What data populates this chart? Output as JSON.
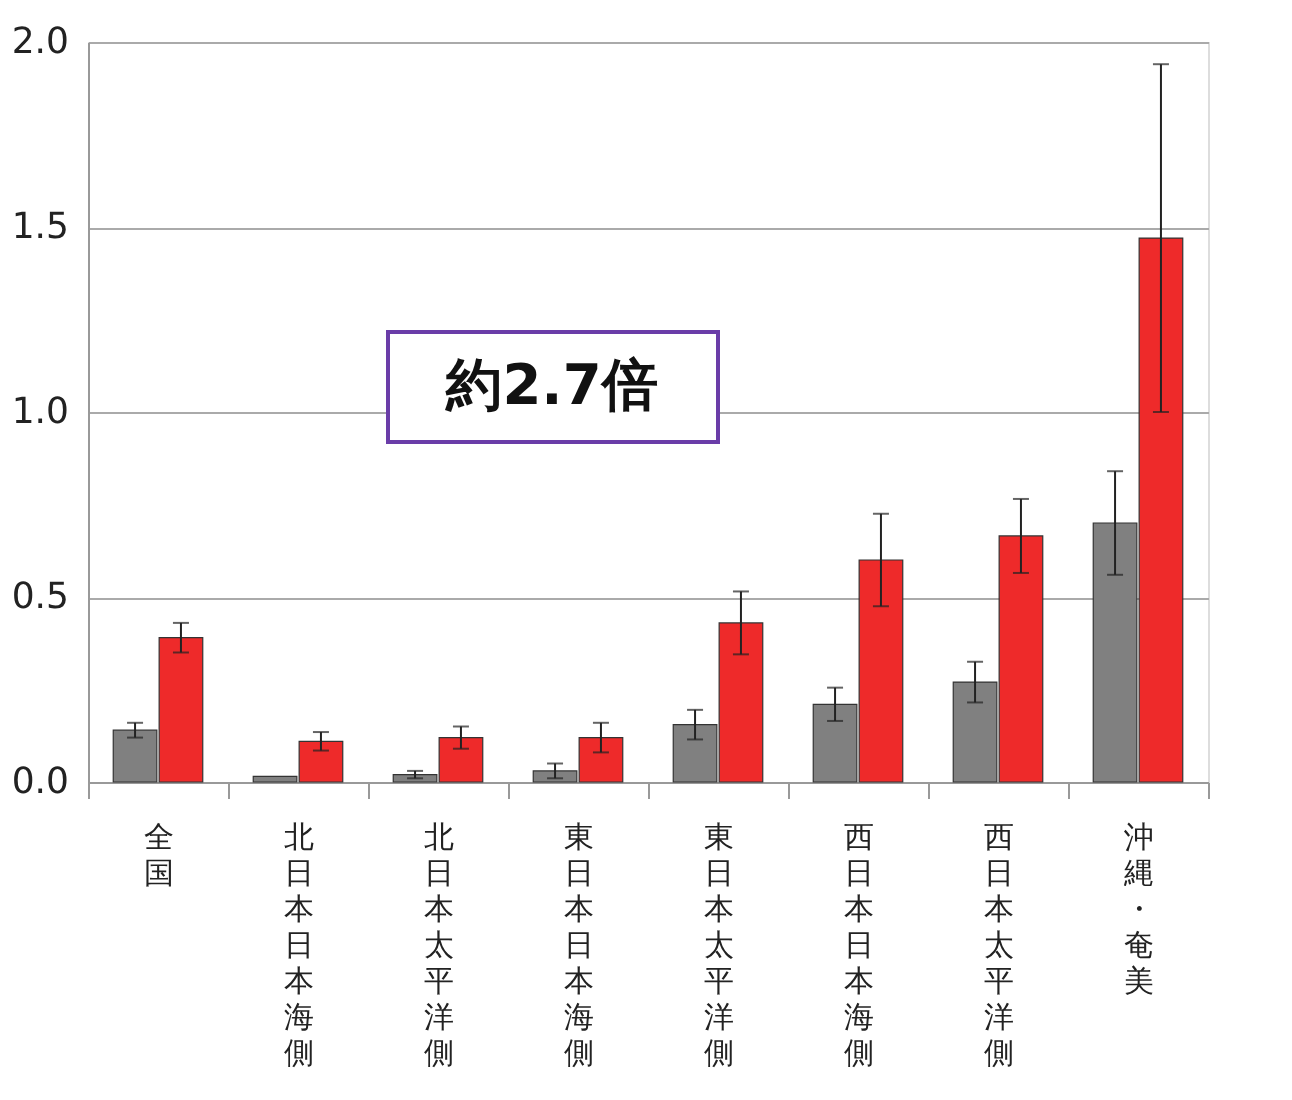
{
  "chart_data": {
    "type": "bar",
    "categories": [
      "全国",
      "北日本日本海側",
      "北日本太平洋側",
      "東日本日本海側",
      "東日本太平洋側",
      "西日本日本海側",
      "西日本太平洋側",
      "沖縄・奄美"
    ],
    "series": [
      {
        "color": "#808080",
        "values": [
          0.14,
          0.015,
          0.02,
          0.03,
          0.155,
          0.21,
          0.27,
          0.7
        ],
        "errors": [
          0.02,
          null,
          0.01,
          0.02,
          0.04,
          0.045,
          0.055,
          0.14
        ]
      },
      {
        "color": "#ee2a2a",
        "values": [
          0.39,
          0.11,
          0.12,
          0.12,
          0.43,
          0.6,
          0.665,
          1.47
        ],
        "errors": [
          0.04,
          0.025,
          0.03,
          0.04,
          0.085,
          0.125,
          0.1,
          0.47
        ]
      }
    ],
    "ylim": [
      0,
      2.0
    ],
    "yticks": [
      {
        "value": 0,
        "label": "0.0"
      },
      {
        "value": 0.5,
        "label": "0.5"
      },
      {
        "value": 1.0,
        "label": "1.0"
      },
      {
        "value": 1.5,
        "label": "1.5"
      },
      {
        "value": 2.0,
        "label": "2.0"
      }
    ],
    "grid": "y",
    "legend": false,
    "annotations": [
      "約2.7倍"
    ]
  }
}
